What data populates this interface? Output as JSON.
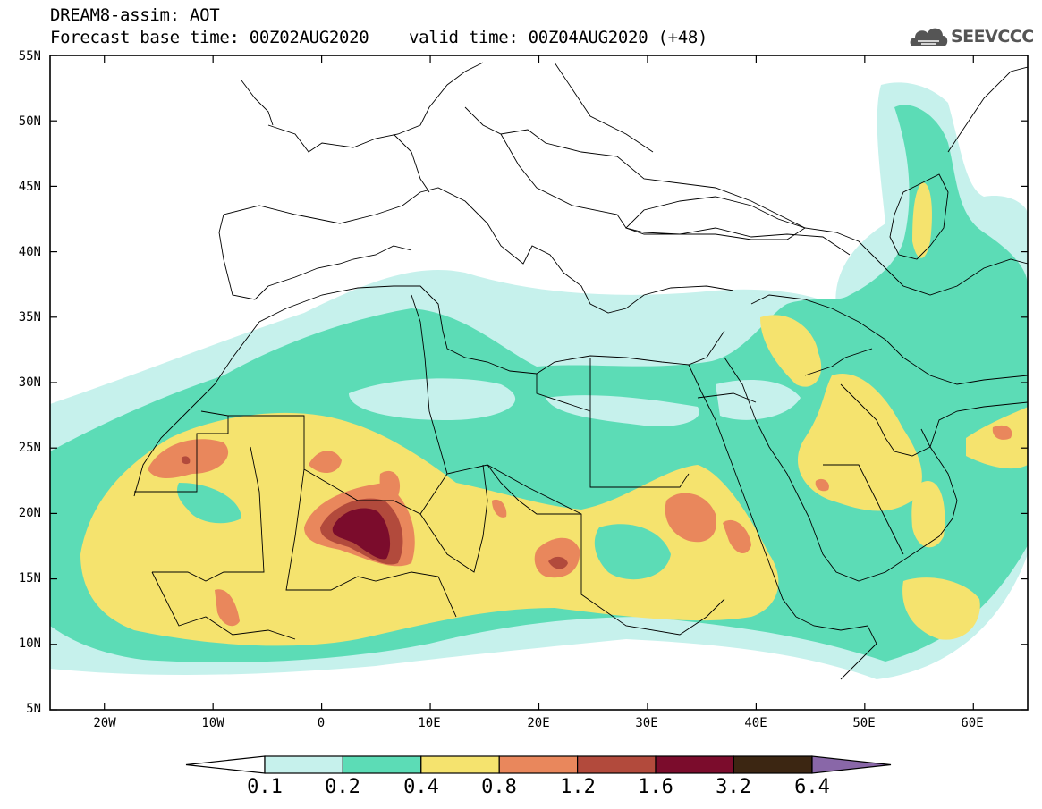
{
  "header": {
    "line1": "DREAM8-assim: AOT",
    "line2": "Forecast base time: 00Z02AUG2020    valid time: 00Z04AUG2020 (+48)",
    "logo_text": "SEEVCCC"
  },
  "map": {
    "lon_range": [
      -25,
      65
    ],
    "lat_range": [
      5,
      55
    ],
    "lat_labels": [
      "55N",
      "50N",
      "45N",
      "40N",
      "35N",
      "30N",
      "25N",
      "20N",
      "15N",
      "10N",
      "5N"
    ],
    "lon_labels": [
      "20W",
      "10W",
      "0",
      "10E",
      "20E",
      "30E",
      "40E",
      "50E",
      "60E"
    ]
  },
  "colorbar": {
    "labels": [
      "0.1",
      "0.2",
      "0.4",
      "0.8",
      "1.2",
      "1.6",
      "3.2",
      "6.4"
    ],
    "colors": [
      "#c6f1ec",
      "#5cdcb6",
      "#f5e36e",
      "#e9875c",
      "#b24a3c",
      "#7b0c2c",
      "#3c2612",
      "#8967a8"
    ],
    "under_color": "#ffffff"
  },
  "palette": {
    "c1": "#c6f1ec",
    "c2": "#5cdcb6",
    "c3": "#f5e36e",
    "c4": "#e9875c",
    "c5": "#b24a3c",
    "c6": "#7b0c2c"
  }
}
